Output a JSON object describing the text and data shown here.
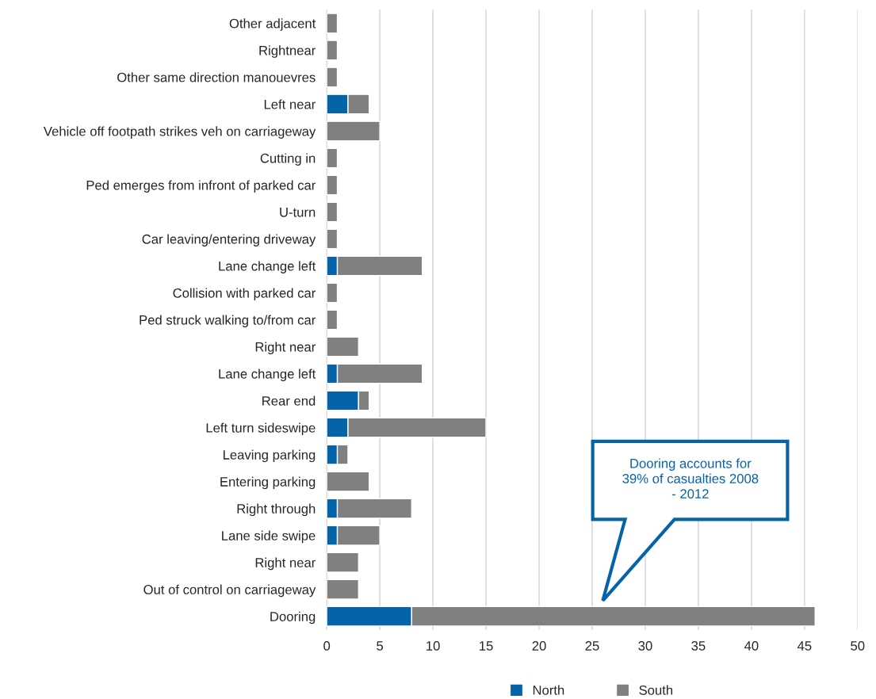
{
  "chart_data": {
    "type": "bar",
    "orientation": "horizontal",
    "stacked": true,
    "categories": [
      "Other adjacent",
      "Rightnear",
      "Other same direction manouevres",
      "Left near",
      "Vehicle off footpath strikes veh on carriageway",
      "Cutting in",
      "Ped emerges from infront of parked car",
      "U-turn",
      "Car leaving/entering driveway",
      "Lane change left",
      "Collision with parked car",
      "Ped struck walking to/from car",
      "Right near",
      "Lane change left",
      "Rear end",
      "Left turn sideswipe",
      "Leaving parking",
      "Entering parking",
      "Right through",
      "Lane side swipe",
      "Right near",
      "Out of control on carriageway",
      "Dooring"
    ],
    "series": [
      {
        "name": "North",
        "color": "#0563a8",
        "values": [
          0,
          0,
          0,
          2,
          0,
          0,
          0,
          0,
          0,
          1,
          0,
          0,
          0,
          1,
          3,
          2,
          1,
          0,
          1,
          1,
          0,
          0,
          8
        ]
      },
      {
        "name": "South",
        "color": "#808080",
        "values": [
          1,
          1,
          1,
          2,
          5,
          1,
          1,
          1,
          1,
          8,
          1,
          1,
          3,
          8,
          1,
          13,
          1,
          4,
          7,
          4,
          3,
          3,
          38
        ]
      }
    ],
    "xlim": [
      0,
      50
    ],
    "xticks": [
      0,
      5,
      10,
      15,
      20,
      25,
      30,
      35,
      40,
      45,
      50
    ],
    "grid": "x",
    "legend": "bottom",
    "annotations": [
      "Dooring accounts for\n39% of casualties 2008\n- 2012"
    ]
  }
}
